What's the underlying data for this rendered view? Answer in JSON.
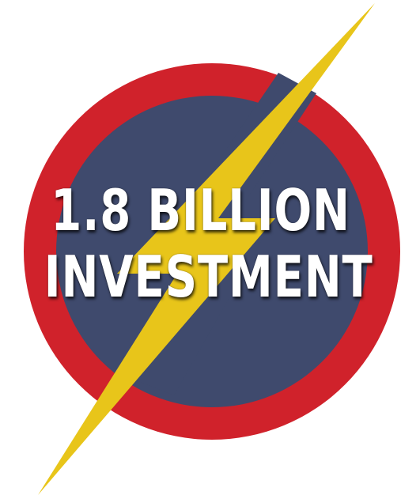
{
  "headline": {
    "line1": "1.8 BILLION",
    "line2": "INVESTMENT"
  },
  "colors": {
    "ring": "#d0222b",
    "inner": "#3f4a6d",
    "bolt": "#e8c51a",
    "text": "#ffffff"
  },
  "icons": {
    "emblem": "lightning-bolt-circle-icon"
  }
}
